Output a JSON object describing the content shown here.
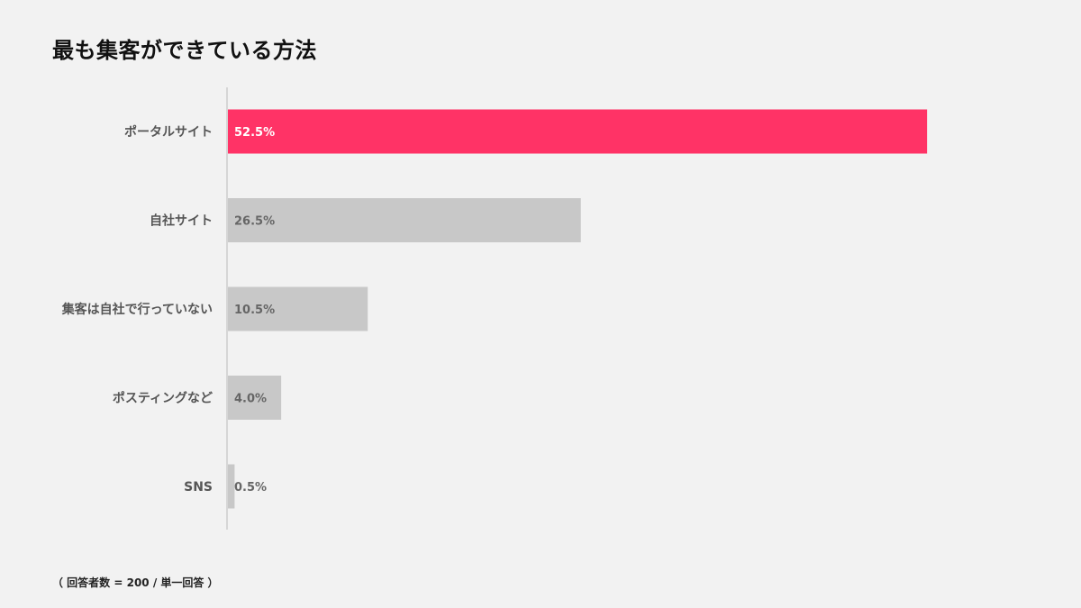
{
  "chart_data": {
    "type": "bar",
    "orientation": "horizontal",
    "title": "最も集客ができている方法",
    "categories": [
      "ポータルサイト",
      "自社サイト",
      "集客は自社で行っていない",
      "ポスティングなど",
      "SNS"
    ],
    "values": [
      52.5,
      26.5,
      10.5,
      4.0,
      0.5
    ],
    "value_labels": [
      "52.5%",
      "26.5%",
      "10.5%",
      "4.0%",
      "0.5%"
    ],
    "highlight_index": 0,
    "xlim": [
      0,
      60
    ],
    "grid": false,
    "legend": "none",
    "colors": {
      "highlight": "#ff3366",
      "bar": "#c8c8c8",
      "axis": "#cccccc",
      "highlight_label": "#ffffff",
      "label": "#666666"
    }
  },
  "footnote": "（ 回答者数 = 200 / 単一回答 ）"
}
